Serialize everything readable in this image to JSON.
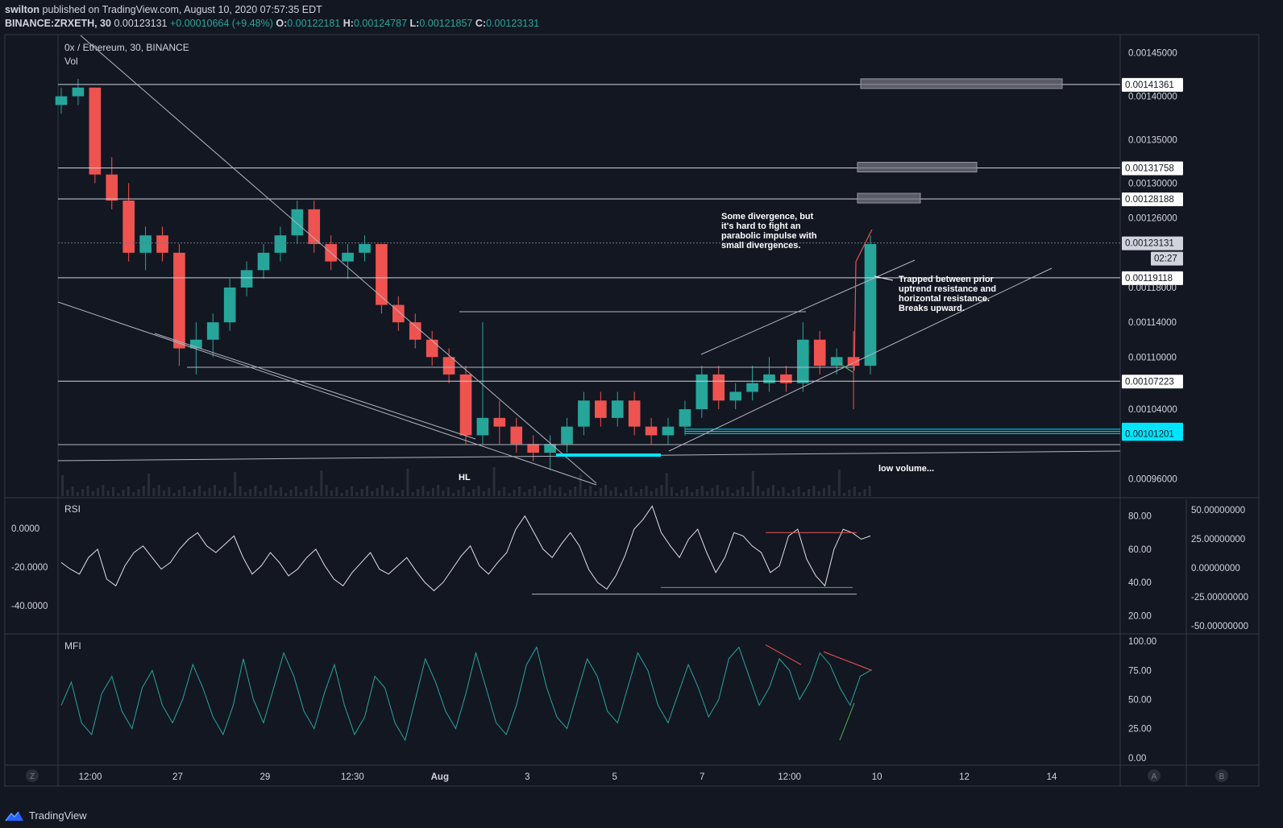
{
  "header": {
    "line1_user": "swilton",
    "line1_rest": " published on TradingView.com, August 10, 2020 07:57:35 EDT",
    "symbol": "BINANCE:ZRXETH, 30",
    "last": "0.00123131",
    "change": "+0.00010664 (+9.48%)",
    "o_label": "O:",
    "o": "0.00122181",
    "h_label": "H:",
    "h": "0.00124787",
    "l_label": "L:",
    "l": "0.00121857",
    "c_label": "C:",
    "c": "0.00123131"
  },
  "panes": {
    "main_title": "0x / Ethereum, 30, BINANCE",
    "vol_label": "Vol",
    "rsi_label": "RSI",
    "mfi_label": "MFI"
  },
  "footer": {
    "brand": "TradingView",
    "btn_z": "Z",
    "btn_a": "A",
    "btn_b": "B"
  },
  "colors": {
    "bg": "#131722",
    "grid": "#2a2e39",
    "up": "#26a69a",
    "down": "#ef5350",
    "accent": "#00e5ff",
    "line": "#d1d4dc",
    "rsi_line": "#e0e0e0",
    "mfi_line": "#26a69a"
  },
  "chart_data": [
    {
      "type": "candlestick",
      "title": "0x / Ethereum, 30, BINANCE",
      "x_ticks": [
        "12:00",
        "27",
        "29",
        "12:30",
        "Aug",
        "3",
        "5",
        "7",
        "12:00",
        "10",
        "12",
        "14"
      ],
      "y_ticks": [
        "0.00145000",
        "0.00140000",
        "0.00135000",
        "0.00130000",
        "0.00126000",
        "0.00118000",
        "0.00114000",
        "0.00110000",
        "0.00104000",
        "0.00096000"
      ],
      "ylim": [
        0.00094,
        0.00147
      ],
      "price_labels": [
        {
          "value": "0.00141361",
          "style": "white"
        },
        {
          "value": "0.00131758",
          "style": "white"
        },
        {
          "value": "0.00128188",
          "style": "white"
        },
        {
          "value": "0.00123131",
          "style": "last"
        },
        {
          "value": "02:27",
          "style": "timer"
        },
        {
          "value": "0.00119118",
          "style": "white"
        },
        {
          "value": "0.00107223",
          "style": "white"
        },
        {
          "value": "0.00101700",
          "style": "cyan"
        },
        {
          "value": "0.00101449",
          "style": "cyan"
        },
        {
          "value": "0.00101201",
          "style": "cyan"
        }
      ],
      "price_path": [
        [
          0.00139,
          0.00141,
          0.00138,
          0.0014
        ],
        [
          0.0014,
          0.00142,
          0.00139,
          0.00141
        ],
        [
          0.00141,
          0.00141,
          0.0013,
          0.00131
        ],
        [
          0.00131,
          0.00133,
          0.00127,
          0.00128
        ],
        [
          0.00128,
          0.0013,
          0.00121,
          0.00122
        ],
        [
          0.00122,
          0.00125,
          0.0012,
          0.00124
        ],
        [
          0.00124,
          0.00125,
          0.00121,
          0.00122
        ],
        [
          0.00122,
          0.00123,
          0.00109,
          0.00111
        ],
        [
          0.00111,
          0.00114,
          0.00108,
          0.00112
        ],
        [
          0.00112,
          0.00115,
          0.0011,
          0.00114
        ],
        [
          0.00114,
          0.00119,
          0.00113,
          0.00118
        ],
        [
          0.00118,
          0.00121,
          0.00117,
          0.0012
        ],
        [
          0.0012,
          0.00123,
          0.00119,
          0.00122
        ],
        [
          0.00122,
          0.00125,
          0.00121,
          0.00124
        ],
        [
          0.00124,
          0.00128,
          0.00123,
          0.00127
        ],
        [
          0.00127,
          0.00128,
          0.00122,
          0.00123
        ],
        [
          0.00123,
          0.00124,
          0.0012,
          0.00121
        ],
        [
          0.00121,
          0.00123,
          0.00119,
          0.00122
        ],
        [
          0.00122,
          0.00124,
          0.00121,
          0.00123
        ],
        [
          0.00123,
          0.00123,
          0.00115,
          0.00116
        ],
        [
          0.00116,
          0.00117,
          0.00113,
          0.00114
        ],
        [
          0.00114,
          0.00115,
          0.00111,
          0.00112
        ],
        [
          0.00112,
          0.00113,
          0.00109,
          0.0011
        ],
        [
          0.0011,
          0.00111,
          0.00107,
          0.00108
        ],
        [
          0.00108,
          0.00109,
          0.001,
          0.00101
        ],
        [
          0.00101,
          0.00114,
          0.001,
          0.00103
        ],
        [
          0.00103,
          0.00105,
          0.001,
          0.00102
        ],
        [
          0.00102,
          0.00103,
          0.00099,
          0.001
        ],
        [
          0.001,
          0.00101,
          0.00098,
          0.00099
        ],
        [
          0.00099,
          0.00101,
          0.00097,
          0.001
        ],
        [
          0.001,
          0.00103,
          0.00099,
          0.00102
        ],
        [
          0.00102,
          0.00106,
          0.00101,
          0.00105
        ],
        [
          0.00105,
          0.00106,
          0.00102,
          0.00103
        ],
        [
          0.00103,
          0.00106,
          0.00102,
          0.00105
        ],
        [
          0.00105,
          0.00106,
          0.00101,
          0.00102
        ],
        [
          0.00102,
          0.00103,
          0.001,
          0.00101
        ],
        [
          0.00101,
          0.00103,
          0.001,
          0.00102
        ],
        [
          0.00102,
          0.00105,
          0.00101,
          0.00104
        ],
        [
          0.00104,
          0.00109,
          0.00103,
          0.00108
        ],
        [
          0.00108,
          0.00109,
          0.00104,
          0.00105
        ],
        [
          0.00105,
          0.00107,
          0.00104,
          0.00106
        ],
        [
          0.00106,
          0.00109,
          0.00105,
          0.00107
        ],
        [
          0.00107,
          0.0011,
          0.00106,
          0.00108
        ],
        [
          0.00108,
          0.00109,
          0.00106,
          0.00107
        ],
        [
          0.00107,
          0.00114,
          0.00106,
          0.00112
        ],
        [
          0.00112,
          0.00113,
          0.00108,
          0.00109
        ],
        [
          0.00109,
          0.00111,
          0.00108,
          0.0011
        ],
        [
          0.0011,
          0.00113,
          0.00104,
          0.00109
        ],
        [
          0.00109,
          0.00124,
          0.00108,
          0.00123
        ]
      ],
      "annotations": [
        {
          "text": "Some divergence, but it's hard to fight an parabolic impulse with small divergences."
        },
        {
          "text": "Trapped between prior uptrend resistance and horizontal resistance. Breaks upward."
        },
        {
          "text": "low volume..."
        },
        {
          "text": "HL"
        }
      ]
    },
    {
      "type": "line",
      "name": "RSI",
      "y_ticks": [
        "80.00",
        "60.00",
        "40.00",
        "20.00"
      ],
      "left_ticks": [
        "0.0000",
        "-20.0000",
        "-40.0000"
      ],
      "right_ticks": [
        "50.00000000",
        "25.00000000",
        "0.00000000",
        "-25.00000000",
        "-50.00000000"
      ],
      "ylim": [
        10,
        90
      ],
      "values": [
        52,
        48,
        45,
        55,
        60,
        42,
        38,
        50,
        58,
        62,
        55,
        48,
        52,
        60,
        66,
        70,
        62,
        58,
        63,
        68,
        55,
        45,
        50,
        58,
        52,
        44,
        48,
        55,
        60,
        50,
        42,
        38,
        46,
        52,
        58,
        48,
        45,
        50,
        55,
        47,
        40,
        35,
        40,
        48,
        56,
        62,
        50,
        45,
        52,
        58,
        72,
        80,
        70,
        60,
        55,
        63,
        70,
        62,
        48,
        40,
        36,
        44,
        56,
        72,
        78,
        86,
        70,
        62,
        55,
        66,
        72,
        58,
        46,
        55,
        70,
        68,
        62,
        58,
        46,
        50,
        68,
        72,
        54,
        44,
        38,
        60,
        72,
        70,
        66,
        68
      ]
    },
    {
      "type": "line",
      "name": "MFI",
      "y_ticks": [
        "100.00",
        "75.00",
        "50.00",
        "25.00",
        "0.00"
      ],
      "ylim": [
        -5,
        105
      ],
      "values": [
        45,
        65,
        30,
        20,
        55,
        70,
        40,
        25,
        60,
        75,
        45,
        30,
        50,
        80,
        60,
        35,
        20,
        45,
        85,
        50,
        30,
        60,
        90,
        70,
        40,
        25,
        55,
        80,
        45,
        20,
        35,
        70,
        60,
        30,
        15,
        50,
        85,
        65,
        40,
        25,
        55,
        90,
        60,
        30,
        20,
        45,
        80,
        95,
        60,
        35,
        25,
        55,
        85,
        70,
        40,
        30,
        60,
        90,
        75,
        45,
        30,
        55,
        80,
        60,
        35,
        50,
        85,
        95,
        70,
        45,
        60,
        85,
        75,
        50,
        65,
        90,
        80,
        60,
        45,
        70,
        75
      ]
    }
  ]
}
